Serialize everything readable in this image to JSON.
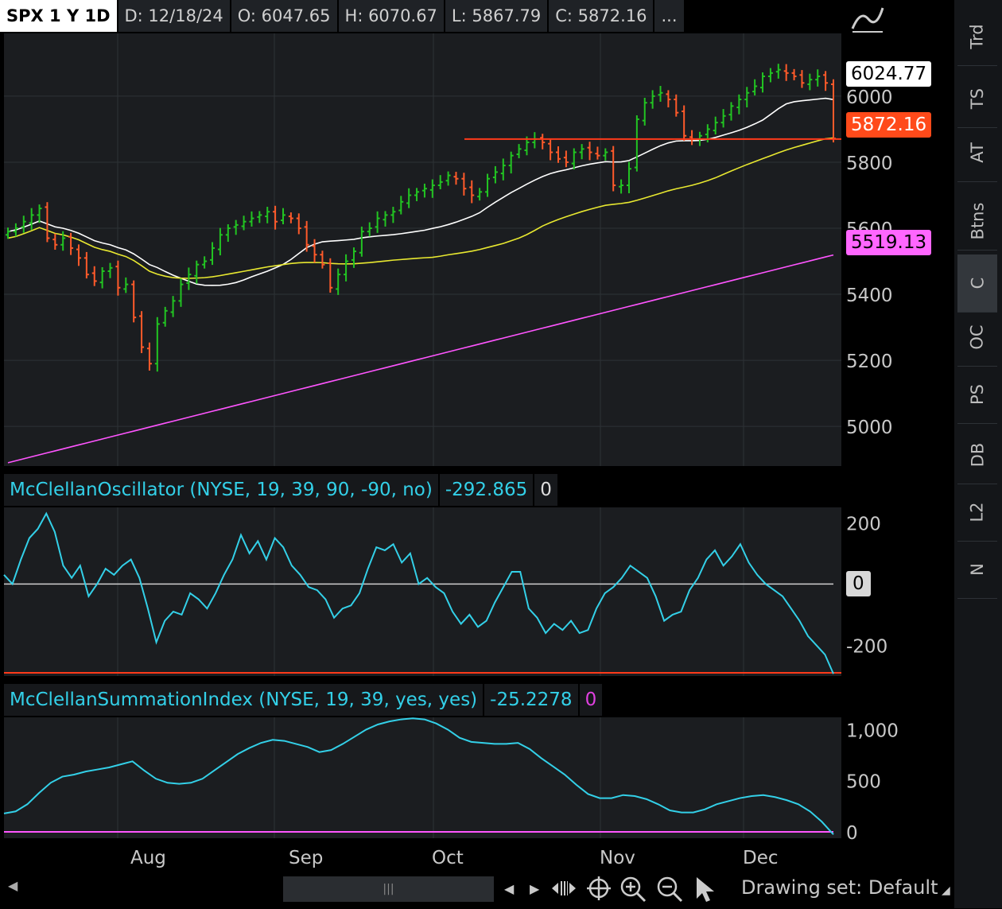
{
  "header": {
    "symbol": "SPX 1 Y 1D",
    "date": "D: 12/18/24",
    "open": "O: 6047.65",
    "high": "H: 6070.67",
    "low": "L: 5867.79",
    "close": "C: 5872.16",
    "more": "..."
  },
  "price_tags": {
    "ma_white": "6024.77",
    "last": "5872.16",
    "ma_magenta": "5519.13"
  },
  "oscillator": {
    "title": "McClellanOscillator (NYSE, 19, 39, 90, -90, no)",
    "value": "-292.865",
    "extra": "0",
    "zero_tag": "0"
  },
  "summation": {
    "title": "McClellanSummationIndex (NYSE, 19, 39, yes, yes)",
    "value": "-25.2278",
    "extra": "0"
  },
  "sidebar": {
    "tabs": [
      "Trd",
      "TS",
      "AT",
      "Btns",
      "C",
      "OC",
      "PS",
      "DB",
      "L2",
      "N"
    ],
    "active": "C"
  },
  "footer": {
    "drawing_set": "Drawing set: Default",
    "scroll_grip": "|||"
  },
  "colors": {
    "up": "#22c422",
    "down": "#ff5a2a",
    "ma_white": "#ffffff",
    "ma_yellow": "#e8e830",
    "ma_magenta": "#ff55ff",
    "osc": "#33d0e8",
    "support_line": "#ff3a1a"
  },
  "chart_data": [
    {
      "type": "ohlc",
      "series_name": "SPX",
      "x_labels": [
        "Aug",
        "Sep",
        "Oct",
        "Nov",
        "Dec"
      ],
      "y_ticks": [
        5000,
        5200,
        5400,
        5600,
        5800,
        6000
      ],
      "ylim": [
        4880,
        6190
      ],
      "close_approx": [
        5590,
        5600,
        5620,
        5640,
        5660,
        5570,
        5550,
        5570,
        5540,
        5510,
        5460,
        5440,
        5470,
        5480,
        5420,
        5430,
        5330,
        5240,
        5190,
        5310,
        5350,
        5380,
        5430,
        5460,
        5490,
        5500,
        5540,
        5580,
        5600,
        5610,
        5620,
        5630,
        5640,
        5650,
        5620,
        5640,
        5630,
        5600,
        5550,
        5520,
        5490,
        5420,
        5460,
        5500,
        5530,
        5590,
        5600,
        5630,
        5640,
        5650,
        5680,
        5700,
        5710,
        5720,
        5730,
        5740,
        5760,
        5750,
        5720,
        5700,
        5710,
        5750,
        5770,
        5790,
        5820,
        5840,
        5860,
        5870,
        5860,
        5830,
        5810,
        5800,
        5830,
        5840,
        5830,
        5820,
        5830,
        5730,
        5730,
        5780,
        5930,
        5980,
        6000,
        6010,
        5990,
        5950,
        5880,
        5870,
        5880,
        5900,
        5920,
        5940,
        5970,
        5990,
        6010,
        6030,
        6060,
        6070,
        6080,
        6070,
        6060,
        6040,
        6050,
        6060,
        6040,
        5872
      ],
      "horizontal_line": 5870,
      "moving_averages": {
        "white_last": 6024.77,
        "magenta_last": 5519.13
      }
    },
    {
      "type": "line",
      "title": "McClellanOscillator (NYSE, 19, 39, 90, -90, no)",
      "y_ticks": [
        200,
        0,
        -200
      ],
      "ylim": [
        -300,
        250
      ],
      "values": [
        30,
        0,
        80,
        150,
        180,
        230,
        170,
        60,
        20,
        60,
        -40,
        0,
        50,
        30,
        60,
        80,
        20,
        -80,
        -190,
        -120,
        -90,
        -100,
        -30,
        -50,
        -80,
        -30,
        30,
        80,
        160,
        100,
        140,
        80,
        150,
        120,
        60,
        30,
        -10,
        -20,
        -50,
        -110,
        -80,
        -70,
        -30,
        50,
        120,
        110,
        130,
        70,
        100,
        0,
        20,
        -10,
        -30,
        -90,
        -130,
        -100,
        -140,
        -120,
        -60,
        -10,
        40,
        40,
        -80,
        -110,
        -160,
        -130,
        -150,
        -120,
        -160,
        -150,
        -80,
        -30,
        -10,
        20,
        60,
        40,
        20,
        -40,
        -120,
        -100,
        -90,
        -20,
        20,
        80,
        110,
        60,
        90,
        130,
        70,
        30,
        0,
        -20,
        -40,
        -80,
        -120,
        -170,
        -200,
        -230,
        -292.865
      ]
    },
    {
      "type": "line",
      "title": "McClellanSummationIndex (NYSE, 19, 39, yes, yes)",
      "y_ticks": [
        1000,
        500,
        0
      ],
      "ylim": [
        0,
        1120
      ],
      "values": [
        180,
        200,
        270,
        380,
        480,
        540,
        560,
        590,
        610,
        630,
        660,
        690,
        600,
        520,
        480,
        470,
        480,
        520,
        600,
        680,
        760,
        820,
        870,
        900,
        890,
        860,
        830,
        780,
        800,
        860,
        930,
        1000,
        1050,
        1080,
        1100,
        1110,
        1100,
        1060,
        1000,
        920,
        880,
        870,
        860,
        860,
        870,
        810,
        720,
        640,
        560,
        460,
        370,
        330,
        330,
        360,
        350,
        320,
        270,
        210,
        190,
        190,
        220,
        270,
        300,
        330,
        350,
        360,
        340,
        310,
        270,
        200,
        100,
        -25.2
      ]
    }
  ]
}
